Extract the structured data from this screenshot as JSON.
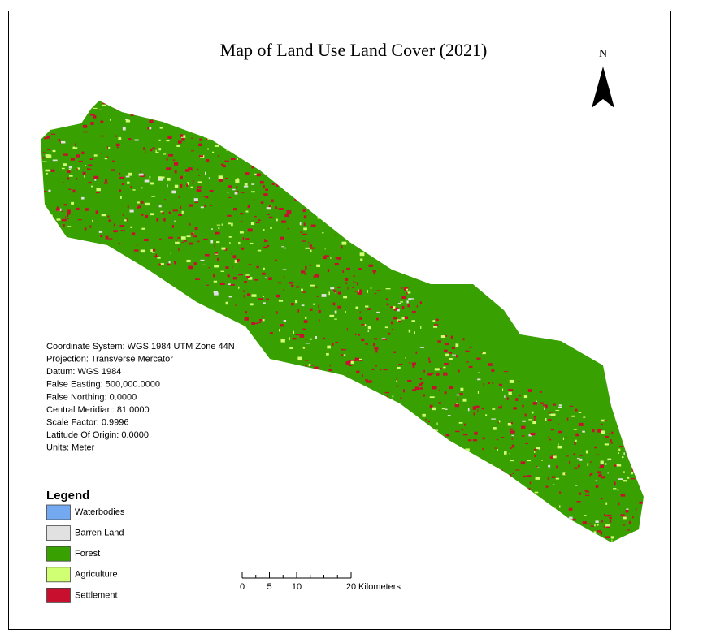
{
  "title": "Map of Land Use Land Cover (2021)",
  "north": "N",
  "projection_info": [
    "Coordinate System: WGS 1984 UTM Zone 44N",
    "Projection: Transverse Mercator",
    "Datum: WGS 1984",
    "False Easting: 500,000.0000",
    "False Northing: 0.0000",
    "Central Meridian: 81.0000",
    "Scale Factor: 0.9996",
    "Latitude Of Origin: 0.0000",
    "Units: Meter"
  ],
  "legend": {
    "title": "Legend",
    "items": [
      {
        "label": "Waterbodies",
        "color": "#73a9f0"
      },
      {
        "label": "Barren Land",
        "color": "#e1e1e1"
      },
      {
        "label": "Forest",
        "color": "#38a000"
      },
      {
        "label": "Agriculture",
        "color": "#d1ff73"
      },
      {
        "label": "Settlement",
        "color": "#c8102e"
      }
    ]
  },
  "scale_bar": {
    "ticks": [
      0,
      5,
      10,
      20
    ],
    "unit": "Kilometers"
  }
}
